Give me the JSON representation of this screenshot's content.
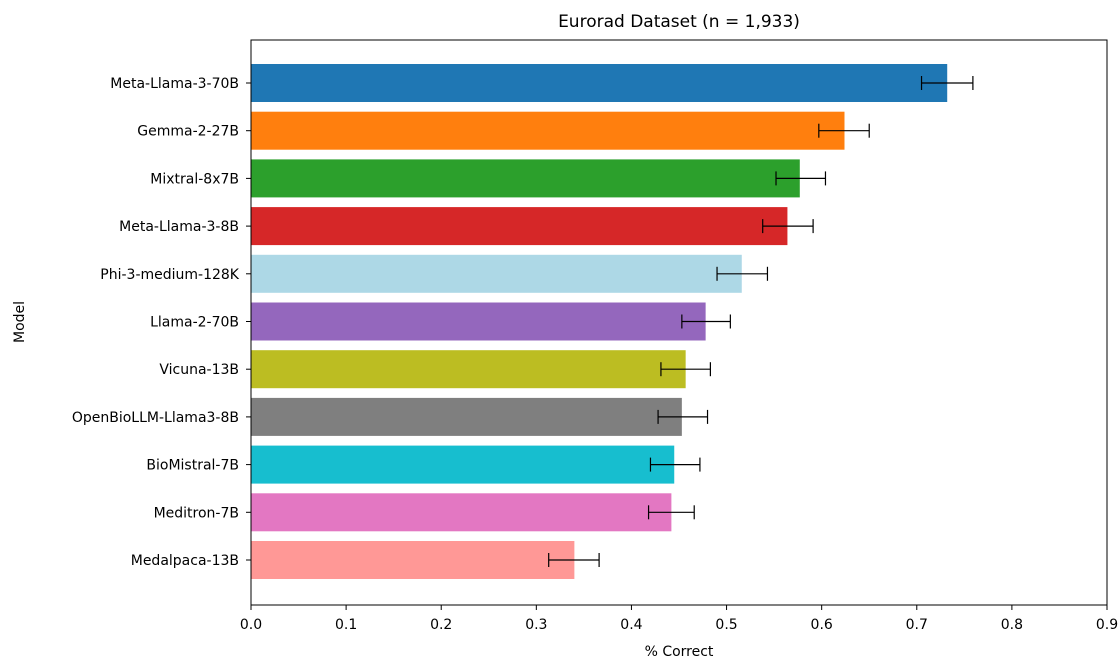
{
  "chart_data": {
    "type": "bar",
    "orientation": "horizontal",
    "title": "Eurorad Dataset (n = 1,933)",
    "xlabel": "% Correct",
    "ylabel": "Model",
    "xlim": [
      0,
      0.9
    ],
    "xticks": [
      0.0,
      0.1,
      0.2,
      0.3,
      0.4,
      0.5,
      0.6,
      0.7,
      0.8,
      0.9
    ],
    "xtick_labels": [
      "0.0",
      "0.1",
      "0.2",
      "0.3",
      "0.4",
      "0.5",
      "0.6",
      "0.7",
      "0.8",
      "0.9"
    ],
    "grid": false,
    "legend": "none",
    "error_bars": true,
    "categories": [
      "Meta-Llama-3-70B",
      "Gemma-2-27B",
      "Mixtral-8x7B",
      "Meta-Llama-3-8B",
      "Phi-3-medium-128K",
      "Llama-2-70B",
      "Vicuna-13B",
      "OpenBioLLM-Llama3-8B",
      "BioMistral-7B",
      "Meditron-7B",
      "Medalpaca-13B"
    ],
    "values": [
      0.732,
      0.624,
      0.577,
      0.564,
      0.516,
      0.478,
      0.457,
      0.453,
      0.445,
      0.442,
      0.34
    ],
    "error_low": [
      0.705,
      0.597,
      0.552,
      0.538,
      0.49,
      0.453,
      0.431,
      0.428,
      0.42,
      0.418,
      0.313
    ],
    "error_high": [
      0.759,
      0.65,
      0.604,
      0.591,
      0.543,
      0.504,
      0.483,
      0.48,
      0.472,
      0.466,
      0.366
    ],
    "colors": [
      "#1f77b4",
      "#ff7f0e",
      "#2ca02c",
      "#d62728",
      "#add8e6",
      "#9467bd",
      "#bcbd22",
      "#7f7f7f",
      "#17becf",
      "#e377c2",
      "#ff9896"
    ]
  }
}
